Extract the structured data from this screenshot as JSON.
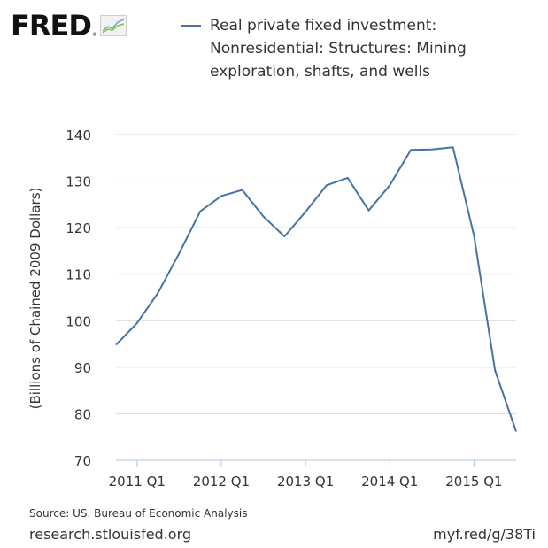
{
  "brand": {
    "name": "FRED"
  },
  "colors": {
    "series": "#4572a7",
    "grid": "#d9d9d9",
    "text": "#333333"
  },
  "chart_data": {
    "type": "line",
    "title": "",
    "xlabel": "",
    "ylabel": "(Billions of Chained 2009 Dollars)",
    "ylim": [
      70,
      140
    ],
    "yticks": [
      "140",
      "130",
      "120",
      "110",
      "100",
      "90",
      "80",
      "70"
    ],
    "xticks": [
      "2011 Q1",
      "2012 Q1",
      "2013 Q1",
      "2014 Q1",
      "2015 Q1"
    ],
    "grid": true,
    "legend_position": "top",
    "series": [
      {
        "name": "Real private fixed investment: Nonresidential: Structures: Mining exploration, shafts, and wells",
        "x": [
          "2010 Q4",
          "2011 Q1",
          "2011 Q2",
          "2011 Q3",
          "2011 Q4",
          "2012 Q1",
          "2012 Q2",
          "2012 Q3",
          "2012 Q4",
          "2013 Q1",
          "2013 Q2",
          "2013 Q3",
          "2013 Q4",
          "2014 Q1",
          "2014 Q2",
          "2014 Q3",
          "2014 Q4",
          "2015 Q1",
          "2015 Q2",
          "2015 Q3"
        ],
        "values": [
          94.8,
          99.5,
          106.0,
          114.5,
          123.5,
          126.8,
          128.1,
          122.4,
          118.1,
          123.4,
          129.1,
          130.7,
          123.7,
          129.1,
          136.7,
          136.8,
          137.3,
          118.3,
          89.3,
          76.2
        ]
      }
    ]
  },
  "footer": {
    "source": "Source: US. Bureau of Economic Analysis",
    "site": "research.stlouisfed.org",
    "short_url": "myf.red/g/38Ti"
  }
}
